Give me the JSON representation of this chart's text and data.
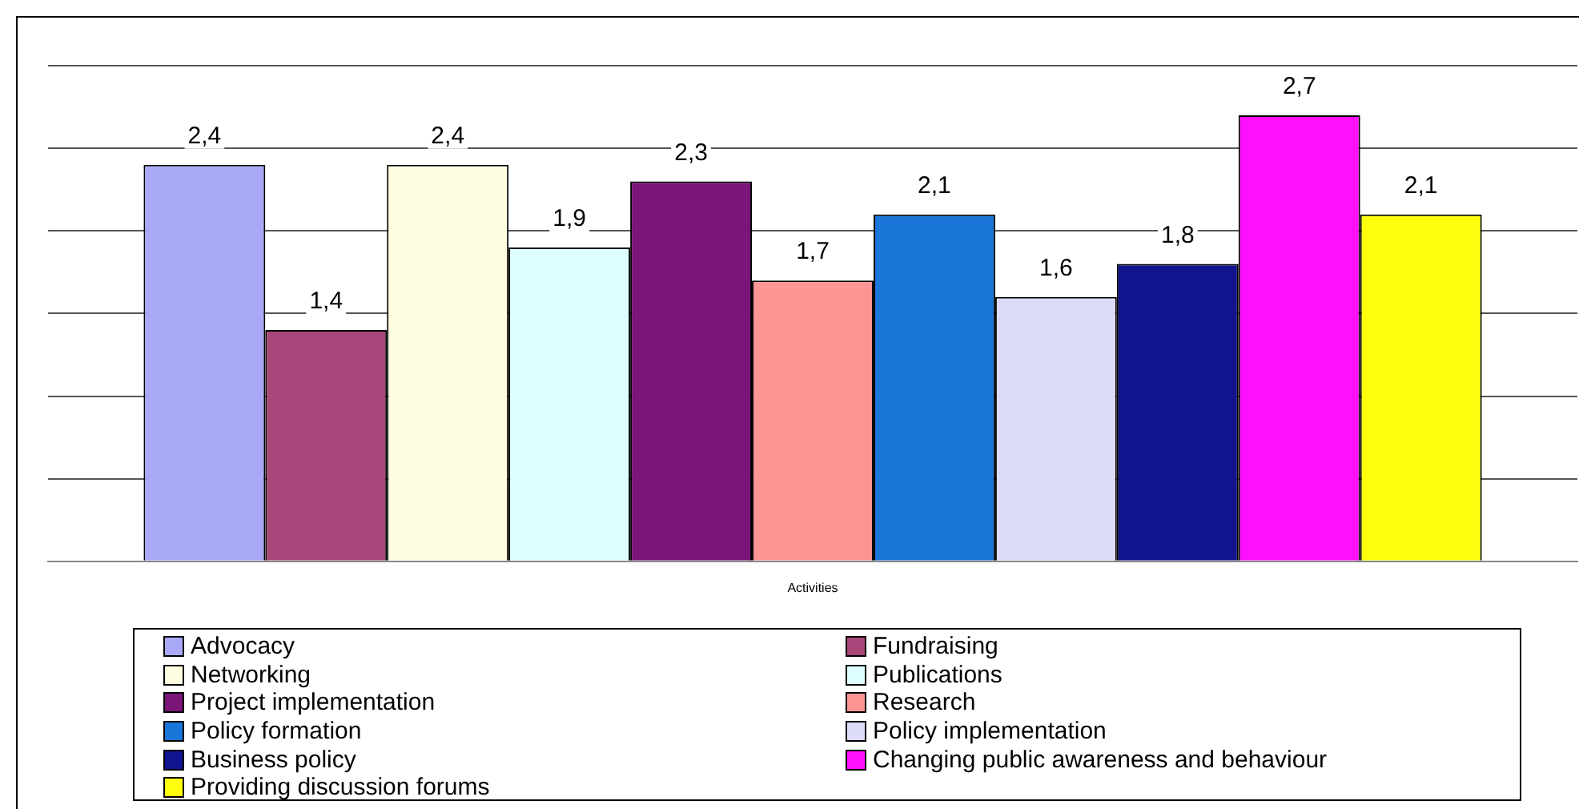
{
  "chart_data": {
    "type": "bar",
    "categories": [
      null
    ],
    "xlabel": "Activities",
    "ylim": [
      0,
      3
    ],
    "yticks": [
      {
        "value": 0,
        "label": null
      },
      {
        "value": 0.5,
        "label": null
      },
      {
        "value": 1,
        "label": null
      },
      {
        "value": 1.5,
        "label": null
      },
      {
        "value": 2,
        "label": null
      },
      {
        "value": 2.5,
        "label": null
      },
      {
        "value": 3,
        "label": null
      }
    ],
    "grid": "y",
    "tick_labels": false,
    "legend": "bottom",
    "series": [
      {
        "name": "Advocacy",
        "color": "#a9a9f8",
        "values": [
          2.4
        ],
        "value_labels": [
          "2,4"
        ]
      },
      {
        "name": "Fundraising",
        "color": "#a8487a",
        "values": [
          1.4
        ],
        "value_labels": [
          "1,4"
        ]
      },
      {
        "name": "Networking",
        "color": "#fefde0",
        "values": [
          2.4
        ],
        "value_labels": [
          "2,4"
        ]
      },
      {
        "name": "Publications",
        "color": "#dcfefe",
        "values": [
          1.9
        ],
        "value_labels": [
          "1,9"
        ]
      },
      {
        "name": "Project implementation",
        "color": "#7c1578",
        "values": [
          2.3
        ],
        "value_labels": [
          "2,3"
        ]
      },
      {
        "name": "Research",
        "color": "#fe9494",
        "values": [
          1.7
        ],
        "value_labels": [
          "1,7"
        ]
      },
      {
        "name": "Policy formation",
        "color": "#1a76d8",
        "values": [
          2.1
        ],
        "value_labels": [
          "2,1"
        ]
      },
      {
        "name": "Policy implementation",
        "color": "#dcdcfa",
        "values": [
          1.6
        ],
        "value_labels": [
          "1,6"
        ]
      },
      {
        "name": "Business policy",
        "color": "#12138f",
        "values": [
          1.8
        ],
        "value_labels": [
          "1,8"
        ]
      },
      {
        "name": "Changing public awareness and behaviour",
        "color": "#fe10fe",
        "values": [
          2.7
        ],
        "value_labels": [
          "2,7"
        ]
      },
      {
        "name": "Providing discussion forums",
        "color": "#fefe0e",
        "values": [
          2.1
        ],
        "value_labels": [
          "2,1"
        ]
      }
    ]
  }
}
